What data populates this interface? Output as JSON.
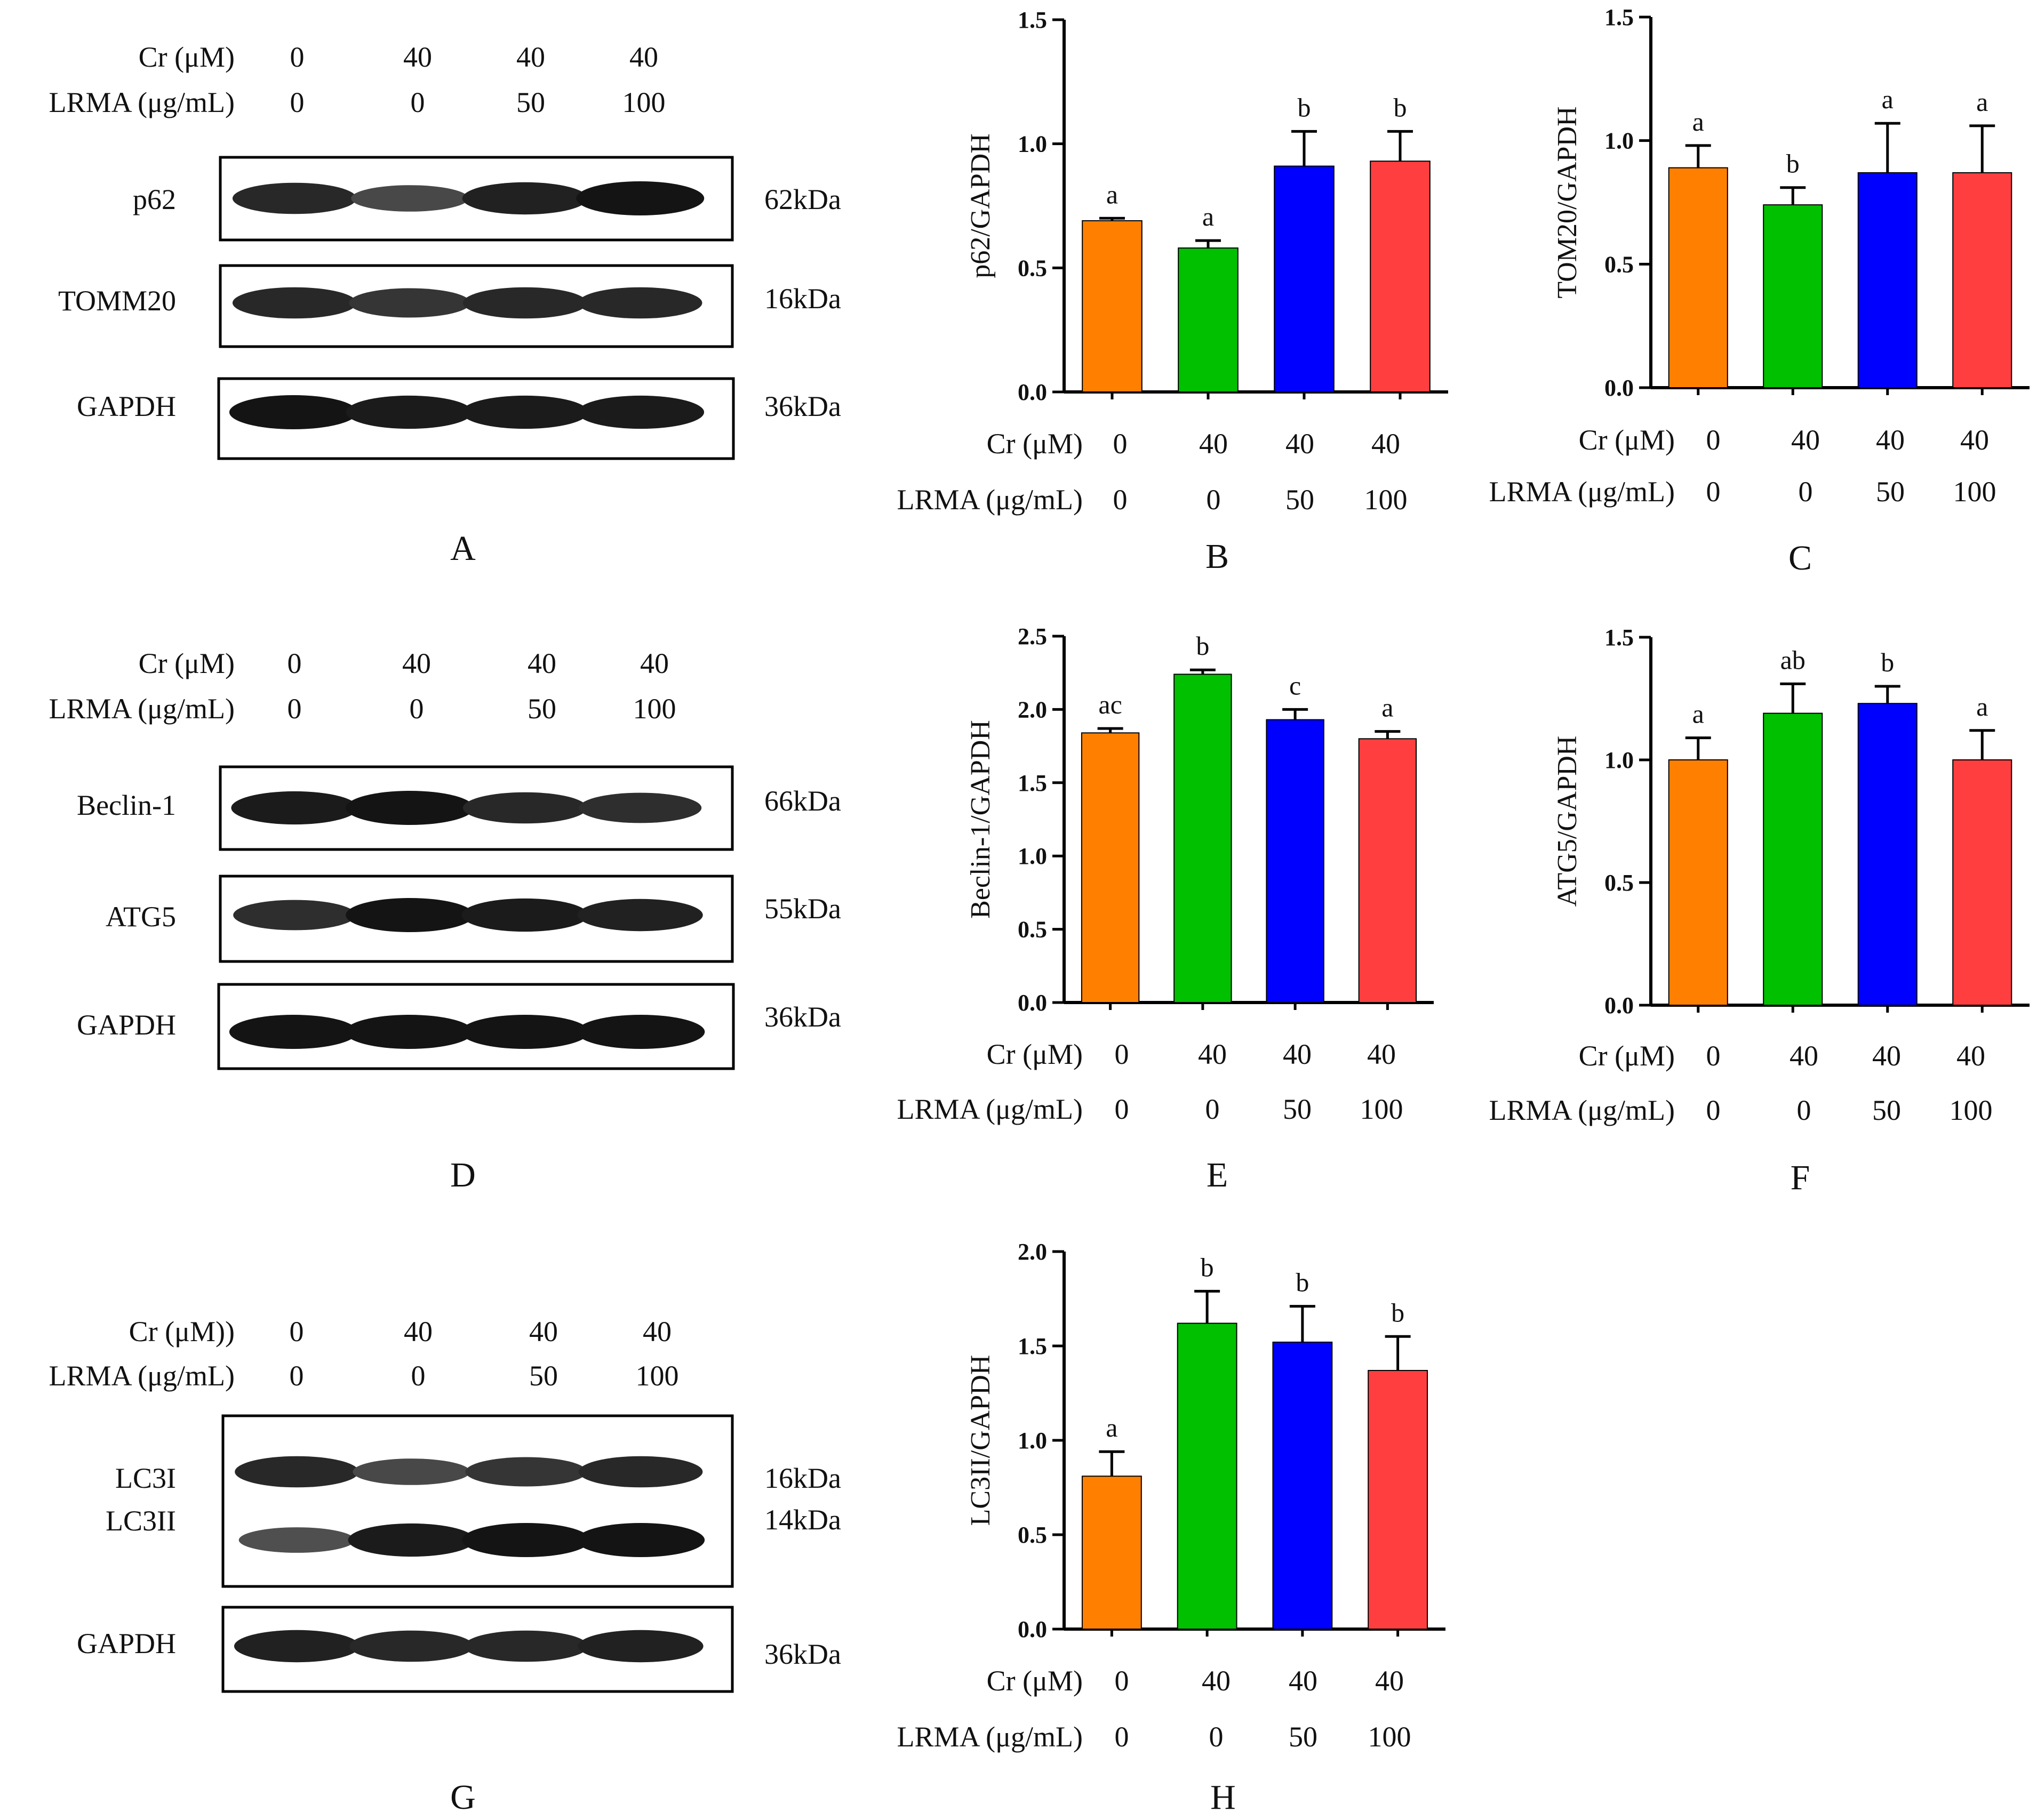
{
  "colors": {
    "g1": "#ff8000",
    "g2": "#00c000",
    "g3": "#0000ff",
    "g4": "#ff3f3f",
    "axis": "#000000"
  },
  "blots": [
    {
      "panel_label": "A",
      "header": {
        "cr_label": "Cr (μM)",
        "lrma_label": "LRMA (μg/mL)",
        "cr": [
          "0",
          "40",
          "40",
          "40"
        ],
        "lrma": [
          "0",
          "0",
          "50",
          "100"
        ]
      },
      "boxes": [
        {
          "protein": "p62",
          "kda": "62kDa",
          "bands": [
            {
              "intensity": [
                0.85,
                0.6,
                0.9,
                1.0
              ]
            }
          ]
        },
        {
          "protein": "TOMM20",
          "kda": "16kDa",
          "bands": [
            {
              "intensity": [
                0.85,
                0.75,
                0.85,
                0.85
              ]
            }
          ]
        },
        {
          "protein": "GAPDH",
          "kda": "36kDa",
          "bands": [
            {
              "intensity": [
                1.0,
                0.95,
                0.95,
                0.95
              ]
            }
          ]
        }
      ]
    },
    {
      "panel_label": "D",
      "header": {
        "cr_label": "Cr (μM)",
        "lrma_label": "LRMA (μg/mL)",
        "cr": [
          "0",
          "40",
          "40",
          "40"
        ],
        "lrma": [
          "0",
          "0",
          "50",
          "100"
        ]
      },
      "boxes": [
        {
          "protein": "Beclin-1",
          "kda": "66kDa",
          "bands": [
            {
              "intensity": [
                0.95,
                1.0,
                0.85,
                0.8
              ]
            }
          ]
        },
        {
          "protein": "ATG5",
          "kda": "55kDa",
          "bands": [
            {
              "intensity": [
                0.8,
                1.0,
                0.95,
                0.9
              ]
            }
          ]
        },
        {
          "protein": "GAPDH",
          "kda": "36kDa",
          "bands": [
            {
              "intensity": [
                1.0,
                1.0,
                1.0,
                1.0
              ]
            }
          ]
        }
      ]
    },
    {
      "panel_label": "G",
      "header": {
        "cr_label": "Cr (μM))",
        "lrma_label": "LRMA (μg/mL)",
        "cr": [
          "0",
          "40",
          "40",
          "40"
        ],
        "lrma": [
          "0",
          "0",
          "50",
          "100"
        ]
      },
      "boxes": [
        {
          "protein": "LC3I",
          "protein2": "LC3II",
          "kda": "16kDa",
          "kda2": "14kDa",
          "bands": [
            {
              "intensity": [
                0.85,
                0.6,
                0.75,
                0.85
              ]
            },
            {
              "intensity": [
                0.55,
                0.95,
                1.0,
                1.0
              ]
            }
          ]
        },
        {
          "protein": "GAPDH",
          "kda": "36kDa",
          "bands": [
            {
              "intensity": [
                0.9,
                0.85,
                0.85,
                0.9
              ]
            }
          ]
        }
      ]
    }
  ],
  "chart_data": [
    {
      "panel_label": "B",
      "type": "bar",
      "ylabel": "p62/GAPDH",
      "ylim": [
        0,
        1.5
      ],
      "yticks": [
        "0.0",
        "0.5",
        "1.0",
        "1.5"
      ],
      "values": [
        0.69,
        0.58,
        0.91,
        0.93
      ],
      "errors": [
        0.01,
        0.03,
        0.14,
        0.12
      ],
      "letters": [
        "a",
        "a",
        "b",
        "b"
      ],
      "cr_label": "Cr (μM)",
      "lrma_label": "LRMA (μg/mL)",
      "cr": [
        "0",
        "40",
        "40",
        "40"
      ],
      "lrma": [
        "0",
        "0",
        "50",
        "100"
      ]
    },
    {
      "panel_label": "C",
      "type": "bar",
      "ylabel": "TOM20/GAPDH",
      "ylim": [
        0,
        1.5
      ],
      "yticks": [
        "0.0",
        "0.5",
        "1.0",
        "1.5"
      ],
      "values": [
        0.89,
        0.74,
        0.87,
        0.87
      ],
      "errors": [
        0.09,
        0.07,
        0.2,
        0.19
      ],
      "letters": [
        "a",
        "b",
        "a",
        "a"
      ],
      "cr_label": "Cr (μM)",
      "lrma_label": "LRMA (μg/mL)",
      "cr": [
        "0",
        "40",
        "40",
        "40"
      ],
      "lrma": [
        "0",
        "0",
        "50",
        "100"
      ]
    },
    {
      "panel_label": "E",
      "type": "bar",
      "ylabel": "Beclin-1/GAPDH",
      "ylim": [
        0,
        2.5
      ],
      "yticks": [
        "0.0",
        "0.5",
        "1.0",
        "1.5",
        "2.0",
        "2.5"
      ],
      "values": [
        1.84,
        2.24,
        1.93,
        1.8
      ],
      "errors": [
        0.03,
        0.03,
        0.07,
        0.05
      ],
      "letters": [
        "ac",
        "b",
        "c",
        "a"
      ],
      "cr_label": "Cr (μM)",
      "lrma_label": "LRMA (μg/mL)",
      "cr": [
        "0",
        "40",
        "40",
        "40"
      ],
      "lrma": [
        "0",
        "0",
        "50",
        "100"
      ]
    },
    {
      "panel_label": "F",
      "type": "bar",
      "ylabel": "ATG5/GAPDH",
      "ylim": [
        0,
        1.5
      ],
      "yticks": [
        "0.0",
        "0.5",
        "1.0",
        "1.5"
      ],
      "values": [
        1.0,
        1.19,
        1.23,
        1.0
      ],
      "errors": [
        0.09,
        0.12,
        0.07,
        0.12
      ],
      "letters": [
        "a",
        "ab",
        "b",
        "a"
      ],
      "cr_label": "Cr (μM)",
      "lrma_label": "LRMA (μg/mL)",
      "cr": [
        "0",
        "40",
        "40",
        "40"
      ],
      "lrma": [
        "0",
        "0",
        "50",
        "100"
      ]
    },
    {
      "panel_label": "H",
      "type": "bar",
      "ylabel": "LC3II/GAPDH",
      "ylim": [
        0,
        2.0
      ],
      "yticks": [
        "0.0",
        "0.5",
        "1.0",
        "1.5",
        "2.0"
      ],
      "values": [
        0.81,
        1.62,
        1.52,
        1.37
      ],
      "errors": [
        0.13,
        0.17,
        0.19,
        0.18
      ],
      "letters": [
        "a",
        "b",
        "b",
        "b"
      ],
      "cr_label": "Cr (μM)",
      "lrma_label": "LRMA (μg/mL)",
      "cr": [
        "0",
        "40",
        "40",
        "40"
      ],
      "lrma": [
        "0",
        "0",
        "50",
        "100"
      ]
    }
  ]
}
